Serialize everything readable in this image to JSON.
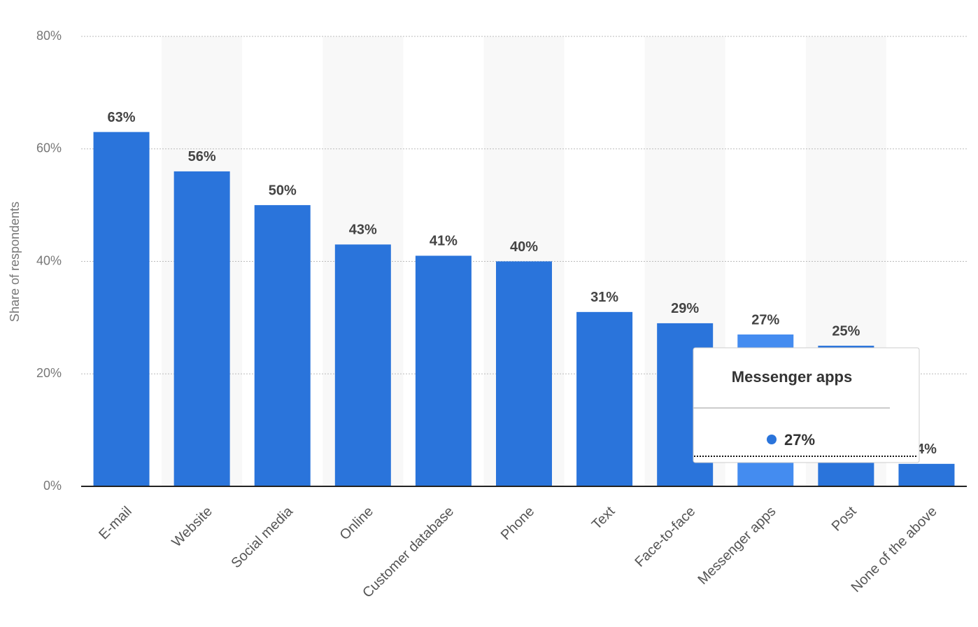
{
  "chart_data": {
    "type": "bar",
    "y_label": "Share of respondents",
    "categories": [
      "E-mail",
      "Website",
      "Social media",
      "Online",
      "Customer database",
      "Phone",
      "Text",
      "Face-to-face",
      "Messenger apps",
      "Post",
      "None of the above"
    ],
    "values": [
      63,
      56,
      50,
      43,
      41,
      40,
      31,
      29,
      27,
      25,
      4
    ],
    "value_labels": [
      "63%",
      "56%",
      "50%",
      "43%",
      "41%",
      "40%",
      "31%",
      "29%",
      "27%",
      "25%",
      "4%"
    ],
    "colors": [
      "#2a74db",
      "#2a74db",
      "#2a74db",
      "#2a74db",
      "#2a74db",
      "#2a74db",
      "#2a74db",
      "#2a74db",
      "#448cf0",
      "#2a74db",
      "#2a74db"
    ],
    "ylim": [
      0,
      80
    ],
    "yticks": [
      {
        "value": 0,
        "label": "0%"
      },
      {
        "value": 20,
        "label": "20%"
      },
      {
        "value": 40,
        "label": "40%"
      },
      {
        "value": 60,
        "label": "60%"
      },
      {
        "value": 80,
        "label": "80%"
      }
    ],
    "grid": true,
    "tooltip": {
      "title": "Messenger apps",
      "value": 27,
      "value_label": "27%",
      "color": "#2a74db"
    }
  }
}
